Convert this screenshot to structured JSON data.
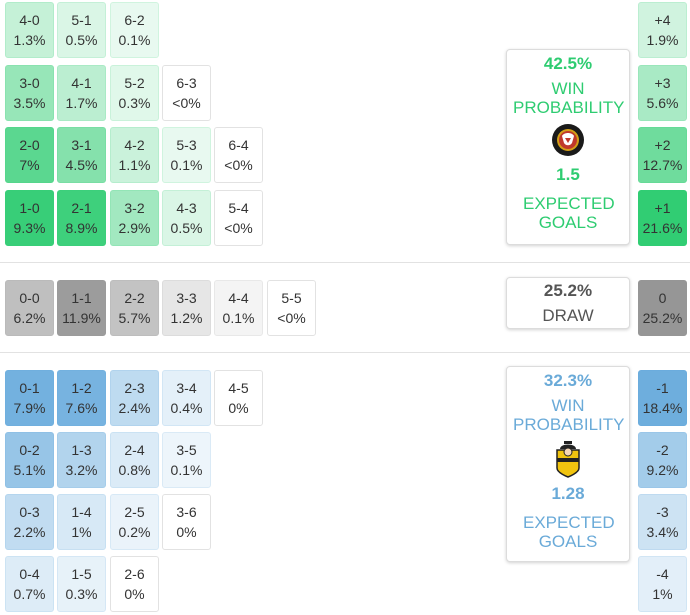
{
  "home": {
    "win_probability": "42.5%",
    "win_label": "WIN PROBABILITY",
    "expected_goals": "1.5",
    "xg_label": "EXPECTED GOALS",
    "color": "#2ecc71",
    "crest_icon": "home-club-crest-icon"
  },
  "draw": {
    "probability": "25.2%",
    "label": "DRAW"
  },
  "away": {
    "win_probability": "32.3%",
    "win_label": "WIN PROBABILITY",
    "expected_goals": "1.28",
    "xg_label": "EXPECTED GOALS",
    "color": "#6aaad8",
    "crest_icon": "away-club-crest-icon"
  },
  "home_scores": [
    {
      "score": "4-0",
      "pct": "1.3%",
      "p": 1.3
    },
    {
      "score": "5-1",
      "pct": "0.5%",
      "p": 0.5
    },
    {
      "score": "6-2",
      "pct": "0.1%",
      "p": 0.1
    },
    {
      "score": "3-0",
      "pct": "3.5%",
      "p": 3.5
    },
    {
      "score": "4-1",
      "pct": "1.7%",
      "p": 1.7
    },
    {
      "score": "5-2",
      "pct": "0.3%",
      "p": 0.3
    },
    {
      "score": "6-3",
      "pct": "<0%",
      "p": 0
    },
    {
      "score": "2-0",
      "pct": "7%",
      "p": 7
    },
    {
      "score": "3-1",
      "pct": "4.5%",
      "p": 4.5
    },
    {
      "score": "4-2",
      "pct": "1.1%",
      "p": 1.1
    },
    {
      "score": "5-3",
      "pct": "0.1%",
      "p": 0.1
    },
    {
      "score": "6-4",
      "pct": "<0%",
      "p": 0
    },
    {
      "score": "1-0",
      "pct": "9.3%",
      "p": 9.3
    },
    {
      "score": "2-1",
      "pct": "8.9%",
      "p": 8.9
    },
    {
      "score": "3-2",
      "pct": "2.9%",
      "p": 2.9
    },
    {
      "score": "4-3",
      "pct": "0.5%",
      "p": 0.5
    },
    {
      "score": "5-4",
      "pct": "<0%",
      "p": 0
    }
  ],
  "draw_scores": [
    {
      "score": "0-0",
      "pct": "6.2%",
      "p": 6.2
    },
    {
      "score": "1-1",
      "pct": "11.9%",
      "p": 11.9
    },
    {
      "score": "2-2",
      "pct": "5.7%",
      "p": 5.7
    },
    {
      "score": "3-3",
      "pct": "1.2%",
      "p": 1.2
    },
    {
      "score": "4-4",
      "pct": "0.1%",
      "p": 0.1
    },
    {
      "score": "5-5",
      "pct": "<0%",
      "p": 0
    }
  ],
  "away_scores": [
    {
      "score": "0-1",
      "pct": "7.9%",
      "p": 7.9
    },
    {
      "score": "1-2",
      "pct": "7.6%",
      "p": 7.6
    },
    {
      "score": "2-3",
      "pct": "2.4%",
      "p": 2.4
    },
    {
      "score": "3-4",
      "pct": "0.4%",
      "p": 0.4
    },
    {
      "score": "4-5",
      "pct": "0%",
      "p": 0
    },
    {
      "score": "0-2",
      "pct": "5.1%",
      "p": 5.1
    },
    {
      "score": "1-3",
      "pct": "3.2%",
      "p": 3.2
    },
    {
      "score": "2-4",
      "pct": "0.8%",
      "p": 0.8
    },
    {
      "score": "3-5",
      "pct": "0.1%",
      "p": 0.1
    },
    {
      "score": "0-3",
      "pct": "2.2%",
      "p": 2.2
    },
    {
      "score": "1-4",
      "pct": "1%",
      "p": 1
    },
    {
      "score": "2-5",
      "pct": "0.2%",
      "p": 0.2
    },
    {
      "score": "3-6",
      "pct": "0%",
      "p": 0
    },
    {
      "score": "0-4",
      "pct": "0.7%",
      "p": 0.7
    },
    {
      "score": "1-5",
      "pct": "0.3%",
      "p": 0.3
    },
    {
      "score": "2-6",
      "pct": "0%",
      "p": 0
    }
  ],
  "margins": [
    {
      "label": "+4",
      "pct": "1.9%",
      "p": 1.9,
      "side": "home"
    },
    {
      "label": "+3",
      "pct": "5.6%",
      "p": 5.6,
      "side": "home"
    },
    {
      "label": "+2",
      "pct": "12.7%",
      "p": 12.7,
      "side": "home"
    },
    {
      "label": "+1",
      "pct": "21.6%",
      "p": 21.6,
      "side": "home"
    },
    {
      "label": "0",
      "pct": "25.2%",
      "p": 25.2,
      "side": "draw"
    },
    {
      "label": "-1",
      "pct": "18.4%",
      "p": 18.4,
      "side": "away"
    },
    {
      "label": "-2",
      "pct": "9.2%",
      "p": 9.2,
      "side": "away"
    },
    {
      "label": "-3",
      "pct": "3.4%",
      "p": 3.4,
      "side": "away"
    },
    {
      "label": "-4",
      "pct": "1%",
      "p": 1,
      "side": "away"
    }
  ]
}
